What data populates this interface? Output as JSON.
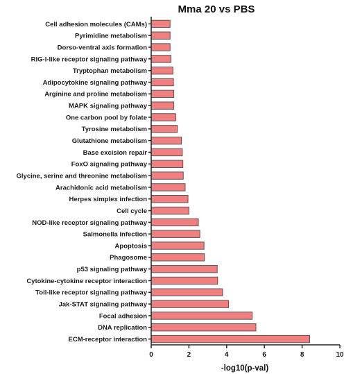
{
  "chart_data": {
    "type": "bar",
    "orientation": "horizontal",
    "title": "Mma 20 vs PBS",
    "xlabel": "-log10(p-val)",
    "ylabel": "",
    "xlim": [
      0,
      10
    ],
    "xticks": [
      "0",
      "2",
      "4",
      "6",
      "8",
      "10"
    ],
    "grid": false,
    "bar_color": "#f08080",
    "bar_edge_color": "#555555",
    "categories": [
      "Cell adhesion molecules (CAMs)",
      "Pyrimidine metabolism",
      "Dorso-ventral axis formation",
      "RIG-I-like receptor signaling pathway",
      "Tryptophan metabolism",
      "Adipocytokine signaling pathway",
      "Arginine and proline metabolism",
      "MAPK signaling pathway",
      "One carbon pool by folate",
      "Tyrosine metabolism",
      "Glutathione metabolism",
      "Base excision repair",
      "FoxO signaling pathway",
      "Glycine, serine and threonine metabolism",
      "Arachidonic acid metabolism",
      "Herpes simplex infection",
      "Cell cycle",
      "NOD-like receptor signaling pathway",
      "Salmonella infection",
      "Apoptosis",
      "Phagosome",
      "p53 signaling pathway",
      "Cytokine-cytokine receptor interaction",
      "Toll-like receptor signaling pathway",
      "Jak-STAT signaling pathway",
      "Focal adhesion",
      "DNA replication",
      "ECM-receptor interaction"
    ],
    "values": [
      1.0,
      1.0,
      1.0,
      1.05,
      1.15,
      1.18,
      1.2,
      1.2,
      1.3,
      1.38,
      1.6,
      1.65,
      1.68,
      1.7,
      1.8,
      1.95,
      2.0,
      2.5,
      2.58,
      2.8,
      2.82,
      3.5,
      3.52,
      3.78,
      4.1,
      5.35,
      5.55,
      8.4
    ]
  }
}
